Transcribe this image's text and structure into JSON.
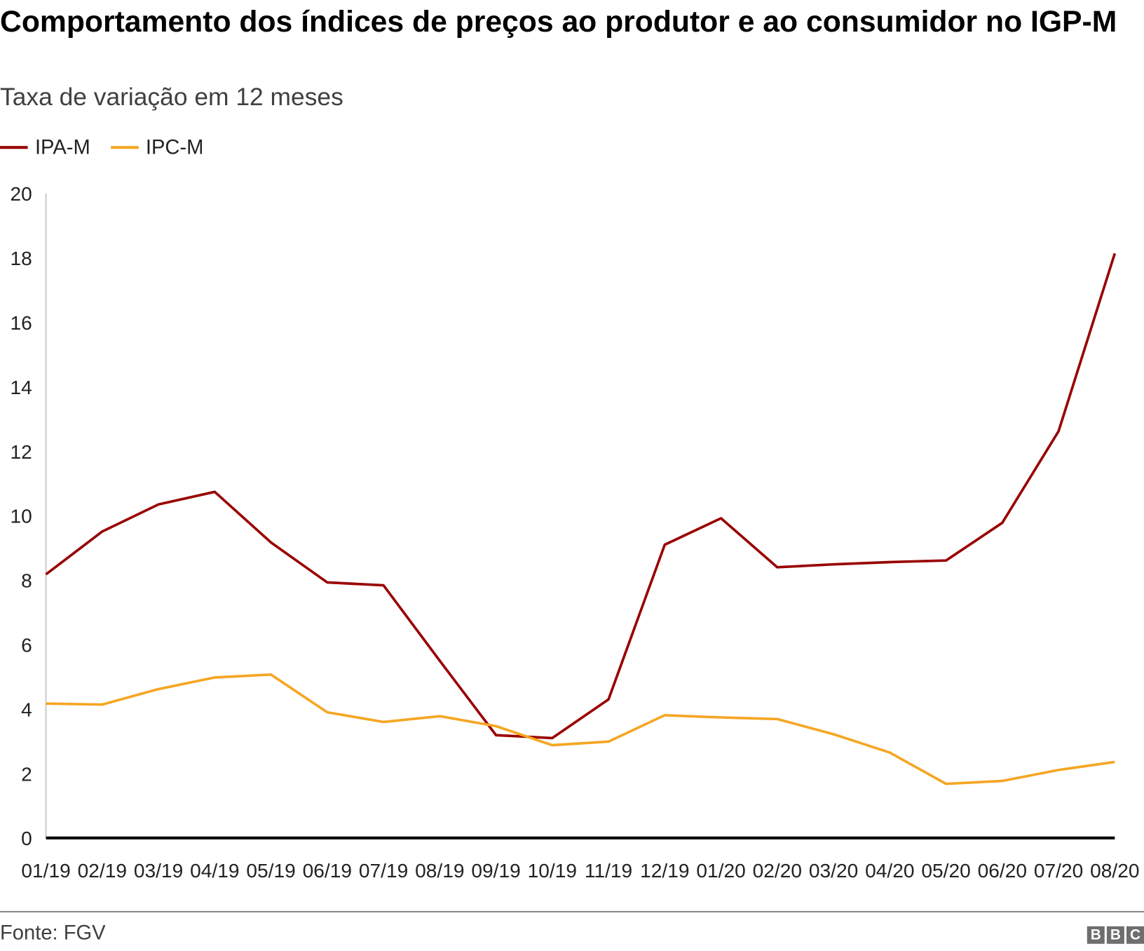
{
  "chart_data": {
    "type": "line",
    "title": "Comportamento dos índices de preços ao produtor e ao consumidor no IGP-M",
    "subtitle": "Taxa de variação em 12 meses",
    "categories": [
      "01/19",
      "02/19",
      "03/19",
      "04/19",
      "05/19",
      "06/19",
      "07/19",
      "08/19",
      "09/19",
      "10/19",
      "11/19",
      "12/19",
      "01/20",
      "02/20",
      "03/20",
      "04/20",
      "05/20",
      "06/20",
      "07/20",
      "08/20"
    ],
    "series": [
      {
        "name": "IPA-M",
        "color": "#990000",
        "values": [
          8.18,
          9.51,
          10.35,
          10.74,
          9.17,
          7.93,
          7.84,
          5.5,
          3.19,
          3.1,
          4.3,
          9.1,
          9.92,
          8.4,
          8.49,
          8.56,
          8.61,
          9.78,
          12.62,
          18.14
        ]
      },
      {
        "name": "IPC-M",
        "color": "#f5a623",
        "values": [
          4.17,
          4.14,
          4.62,
          4.98,
          5.07,
          3.9,
          3.6,
          3.78,
          3.47,
          2.88,
          2.99,
          3.81,
          3.74,
          3.69,
          3.22,
          2.65,
          1.68,
          1.77,
          2.11,
          2.36
        ]
      }
    ],
    "yticks": [
      "0",
      "2",
      "4",
      "6",
      "8",
      "10",
      "12",
      "14",
      "16",
      "18",
      "20"
    ],
    "ylim": [
      0,
      20
    ],
    "grid": false,
    "legend": "top-left",
    "source": "Fonte: FGV"
  },
  "logo": [
    "B",
    "B",
    "C"
  ]
}
